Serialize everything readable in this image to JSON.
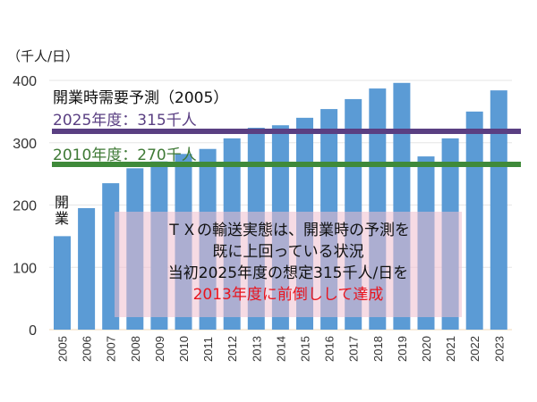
{
  "chart_data": {
    "type": "bar",
    "unit_label": "（千人/日）",
    "categories": [
      "2005",
      "2006",
      "2007",
      "2008",
      "2009",
      "2010",
      "2011",
      "2012",
      "2013",
      "2014",
      "2015",
      "2016",
      "2017",
      "2018",
      "2019",
      "2020",
      "2021",
      "2022",
      "2023"
    ],
    "values": [
      150,
      195,
      235,
      259,
      270,
      282,
      290,
      307,
      324,
      328,
      340,
      354,
      370,
      387,
      396,
      278,
      307,
      350,
      384
    ],
    "ylim": [
      0,
      400
    ],
    "yticks": [
      "0",
      "100",
      "200",
      "300",
      "400"
    ],
    "grid": true,
    "colors": {
      "bar": "#5b9bd5",
      "line_2025": "#5a3f82",
      "line_2010": "#3f8a3a",
      "highlight": "#e8141e"
    },
    "reference_lines": [
      {
        "label": "2025年度：315千人",
        "value": 315
      },
      {
        "label": "2010年度：270千人",
        "value": 270
      }
    ],
    "annotations": {
      "forecast_title": "開業時需要予測（2005）",
      "opening": "開業",
      "note_lines": [
        "ＴＸの輸送実態は、開業時の予測を",
        "既に上回っている状況",
        "当初2025年度の想定315千人/日を",
        "2013年度に前倒しして達成"
      ]
    }
  }
}
